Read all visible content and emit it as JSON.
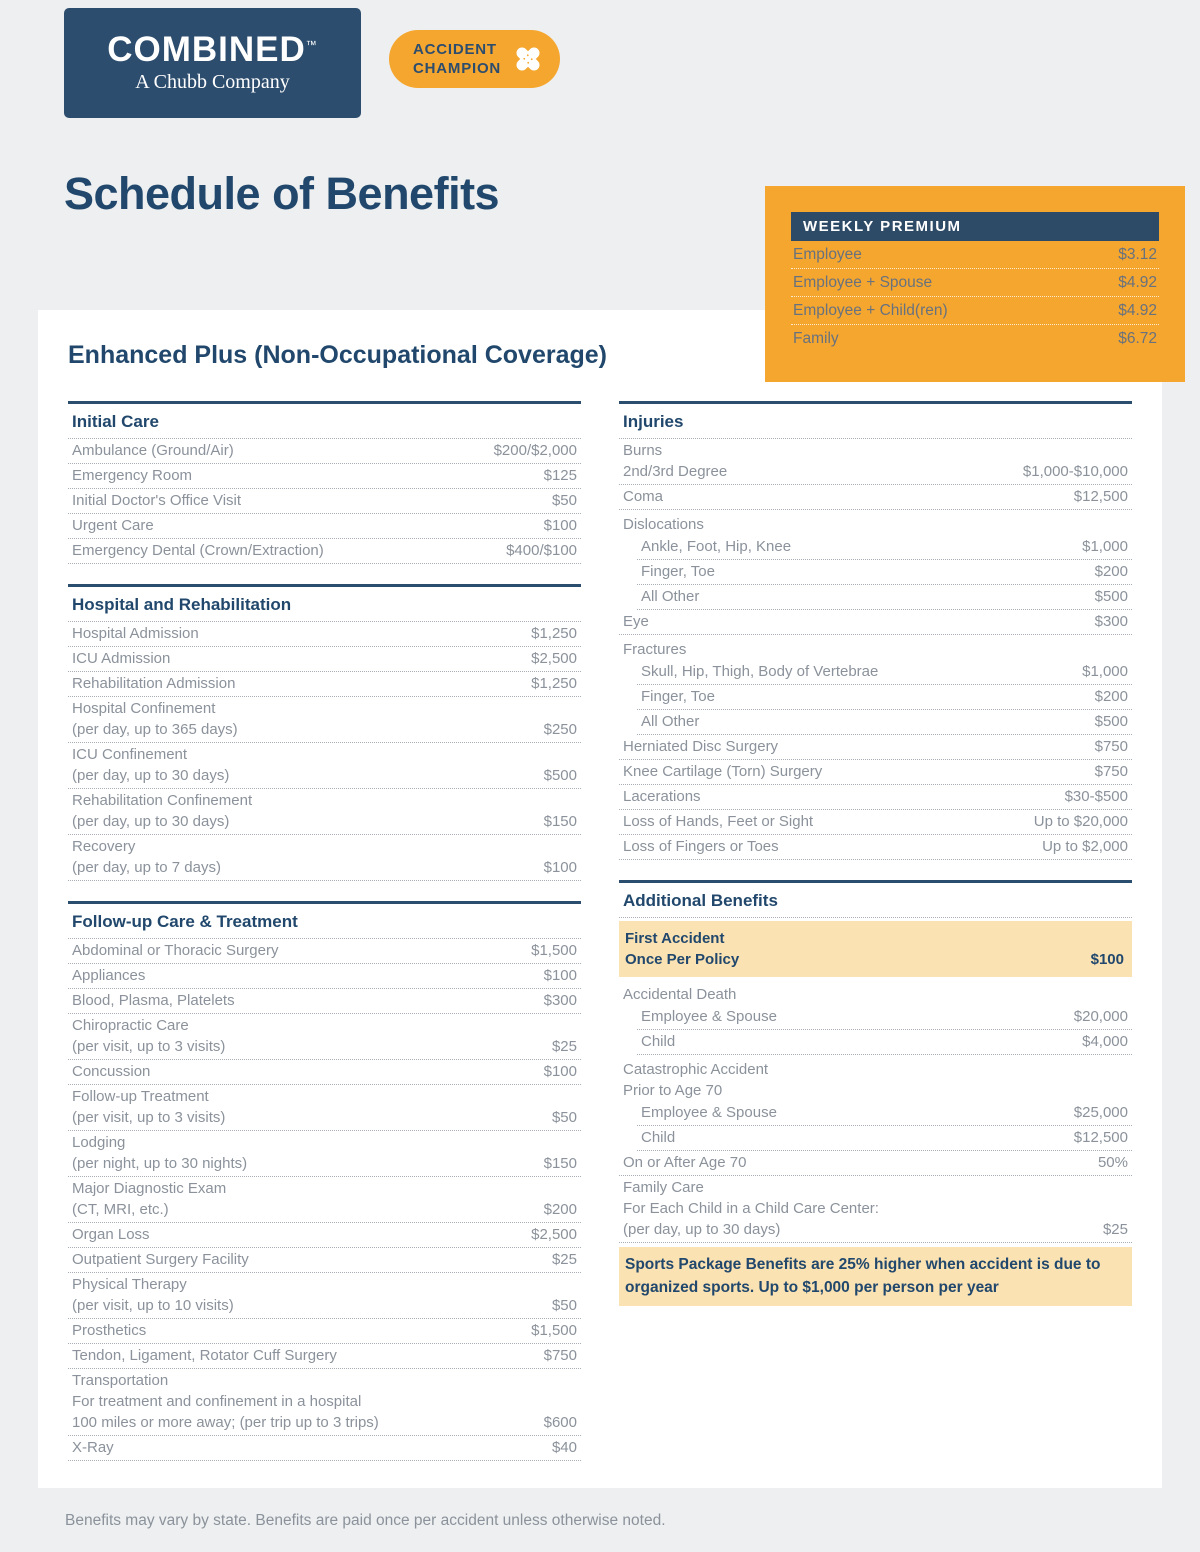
{
  "header": {
    "logo": {
      "brand": "COMBINED",
      "trademark": "™",
      "subtitle": "A Chubb Company"
    },
    "badge": {
      "line1": "ACCIDENT",
      "line2": "CHAMPION"
    },
    "title": "Schedule of Benefits"
  },
  "weekly_premium": {
    "title": "WEEKLY PREMIUM",
    "rows": [
      {
        "label": "Employee",
        "value": "$3.12"
      },
      {
        "label": "Employee + Spouse",
        "value": "$4.92"
      },
      {
        "label": "Employee + Child(ren)",
        "value": "$4.92"
      },
      {
        "label": "Family",
        "value": "$6.72"
      }
    ]
  },
  "plan_heading": "Enhanced Plus (Non-Occupational Coverage)",
  "colors": {
    "navy": "#2d4d6e",
    "orange": "#f5a62f",
    "highlight": "#fbe2b3",
    "row_text": "#8b929b",
    "background": "#edeff0"
  },
  "columns": [
    {
      "sections": [
        {
          "title": "Initial Care",
          "rows": [
            {
              "lines": [
                "Ambulance (Ground/Air)"
              ],
              "value": "$200/$2,000"
            },
            {
              "lines": [
                "Emergency Room"
              ],
              "value": "$125"
            },
            {
              "lines": [
                "Initial Doctor's Office Visit"
              ],
              "value": "$50"
            },
            {
              "lines": [
                "Urgent Care"
              ],
              "value": "$100"
            },
            {
              "lines": [
                "Emergency Dental (Crown/Extraction)"
              ],
              "value": "$400/$100"
            }
          ]
        },
        {
          "title": "Hospital and Rehabilitation",
          "rows": [
            {
              "lines": [
                "Hospital Admission"
              ],
              "value": "$1,250"
            },
            {
              "lines": [
                "ICU Admission"
              ],
              "value": "$2,500"
            },
            {
              "lines": [
                "Rehabilitation Admission"
              ],
              "value": "$1,250"
            },
            {
              "lines": [
                "Hospital Confinement",
                "(per day, up to 365 days)"
              ],
              "value": "$250"
            },
            {
              "lines": [
                "ICU Confinement",
                "(per day, up to 30 days)"
              ],
              "value": "$500"
            },
            {
              "lines": [
                "Rehabilitation Confinement",
                "(per day, up to 30 days)"
              ],
              "value": "$150"
            },
            {
              "lines": [
                "Recovery",
                "(per day, up to 7 days)"
              ],
              "value": "$100"
            }
          ]
        },
        {
          "title": "Follow-up Care & Treatment",
          "rows": [
            {
              "lines": [
                "Abdominal or Thoracic Surgery"
              ],
              "value": "$1,500"
            },
            {
              "lines": [
                "Appliances"
              ],
              "value": "$100"
            },
            {
              "lines": [
                "Blood, Plasma, Platelets"
              ],
              "value": "$300"
            },
            {
              "lines": [
                "Chiropractic Care",
                "(per visit, up to 3 visits)"
              ],
              "value": "$25"
            },
            {
              "lines": [
                "Concussion"
              ],
              "value": "$100"
            },
            {
              "lines": [
                "Follow-up Treatment",
                "(per visit, up to 3 visits)"
              ],
              "value": "$50"
            },
            {
              "lines": [
                "Lodging",
                "(per night, up to 30 nights)"
              ],
              "value": "$150"
            },
            {
              "lines": [
                "Major Diagnostic Exam",
                "(CT, MRI, etc.)"
              ],
              "value": "$200"
            },
            {
              "lines": [
                "Organ Loss"
              ],
              "value": "$2,500"
            },
            {
              "lines": [
                "Outpatient Surgery Facility"
              ],
              "value": "$25"
            },
            {
              "lines": [
                "Physical Therapy",
                "(per visit, up to 10 visits)"
              ],
              "value": "$50"
            },
            {
              "lines": [
                "Prosthetics"
              ],
              "value": "$1,500"
            },
            {
              "lines": [
                "Tendon, Ligament, Rotator Cuff Surgery"
              ],
              "value": "$750"
            },
            {
              "lines": [
                "Transportation",
                "For treatment and confinement in a hospital",
                "100 miles or more away; (per trip up to 3 trips)"
              ],
              "value": "$600"
            },
            {
              "lines": [
                "X-Ray"
              ],
              "value": "$40"
            }
          ]
        }
      ]
    },
    {
      "sections": [
        {
          "title": "Injuries",
          "rows": [
            {
              "lines": [
                "Burns",
                "2nd/3rd Degree"
              ],
              "value": "$1,000-$10,000"
            },
            {
              "lines": [
                "Coma"
              ],
              "value": "$12,500"
            },
            {
              "lines": [
                "Dislocations"
              ],
              "group": true
            },
            {
              "lines": [
                "Ankle, Foot, Hip, Knee"
              ],
              "value": "$1,000",
              "indent": true
            },
            {
              "lines": [
                "Finger, Toe"
              ],
              "value": "$200",
              "indent": true
            },
            {
              "lines": [
                "All Other"
              ],
              "value": "$500",
              "indent": true
            },
            {
              "lines": [
                "Eye"
              ],
              "value": "$300"
            },
            {
              "lines": [
                "Fractures"
              ],
              "group": true
            },
            {
              "lines": [
                "Skull, Hip, Thigh, Body of Vertebrae"
              ],
              "value": "$1,000",
              "indent": true
            },
            {
              "lines": [
                "Finger, Toe"
              ],
              "value": "$200",
              "indent": true
            },
            {
              "lines": [
                "All Other"
              ],
              "value": "$500",
              "indent": true
            },
            {
              "lines": [
                "Herniated Disc Surgery"
              ],
              "value": "$750"
            },
            {
              "lines": [
                "Knee Cartilage (Torn) Surgery"
              ],
              "value": "$750"
            },
            {
              "lines": [
                "Lacerations"
              ],
              "value": "$30-$500"
            },
            {
              "lines": [
                "Loss of Hands, Feet or Sight"
              ],
              "value": "Up to $20,000"
            },
            {
              "lines": [
                "Loss of Fingers or Toes"
              ],
              "value": "Up to $2,000"
            }
          ]
        },
        {
          "title": "Additional Benefits",
          "rows": [
            {
              "lines": [
                "First Accident",
                "Once Per Policy"
              ],
              "value": "$100",
              "highlight": true
            },
            {
              "lines": [
                "Accidental Death"
              ],
              "group": true
            },
            {
              "lines": [
                "Employee & Spouse"
              ],
              "value": "$20,000",
              "indent": true
            },
            {
              "lines": [
                "Child"
              ],
              "value": "$4,000",
              "indent": true
            },
            {
              "lines": [
                "Catastrophic Accident",
                "Prior to Age 70"
              ],
              "group": true
            },
            {
              "lines": [
                "Employee & Spouse"
              ],
              "value": "$25,000",
              "indent": true
            },
            {
              "lines": [
                "Child"
              ],
              "value": "$12,500",
              "indent": true
            },
            {
              "lines": [
                "On or After Age 70"
              ],
              "value": "50%"
            },
            {
              "lines": [
                "Family Care",
                "For Each Child in a Child Care Center:",
                "(per day, up to 30 days)"
              ],
              "value": "$25"
            },
            {
              "note": "Sports Package Benefits are 25% higher when accident is due to organized sports. Up to $1,000 per person per year"
            }
          ]
        }
      ]
    }
  ],
  "footer": "Benefits may vary by state. Benefits are paid once per accident unless otherwise noted."
}
